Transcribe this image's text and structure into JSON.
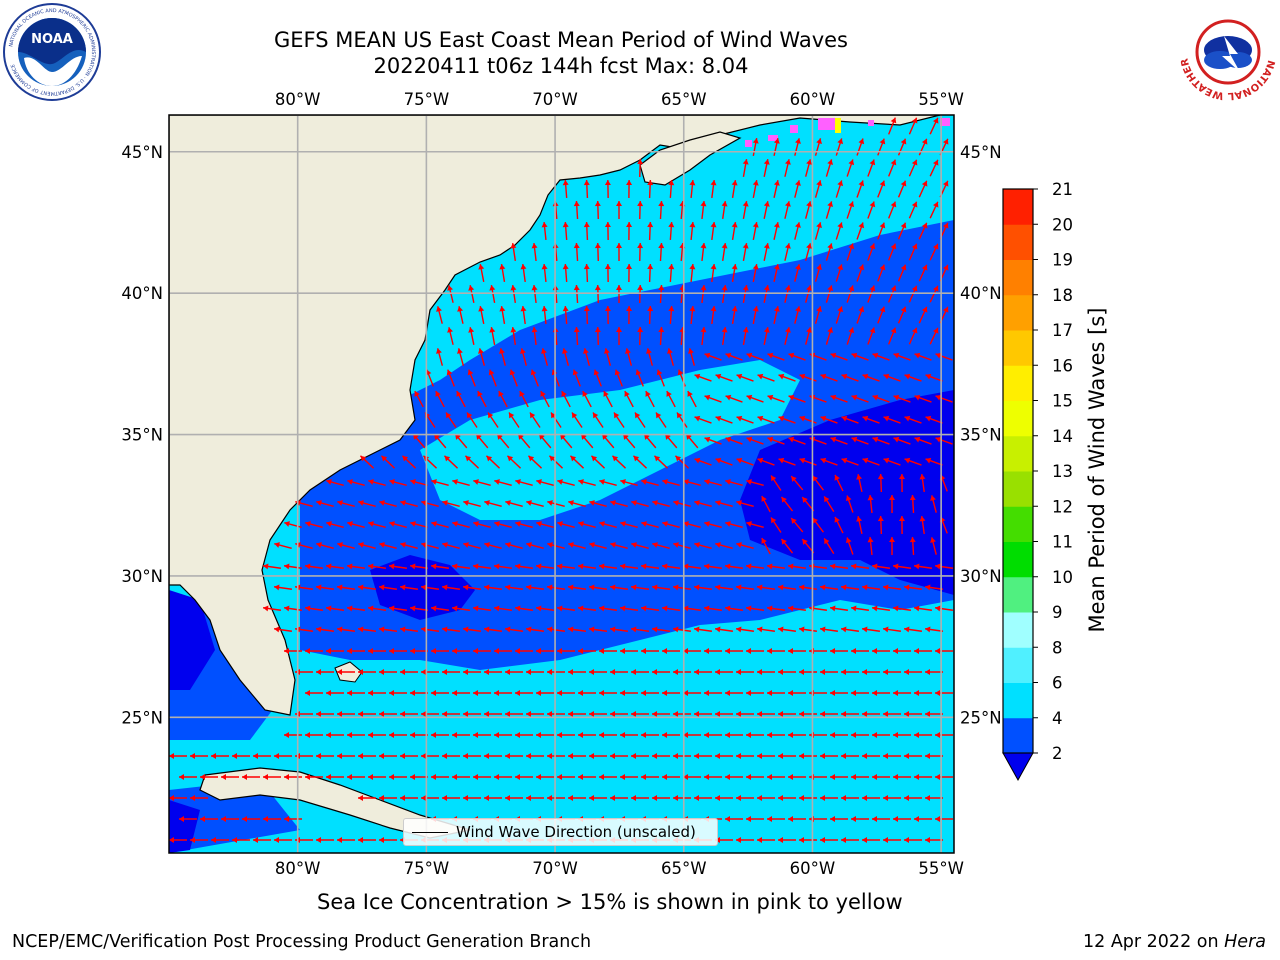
{
  "header": {
    "title_line1": "GEFS MEAN US East Coast Mean Period of Wind Waves",
    "title_line2": "20220411 t06z 144h fcst   Max: 8.04"
  },
  "logos": {
    "left": {
      "name": "noaa-logo",
      "text": "NOAA",
      "ring_text": "NATIONAL OCEANIC AND ATMOSPHERIC ADMINISTRATION · U.S. DEPARTMENT OF COMMERCE"
    },
    "right": {
      "name": "nws-logo",
      "ring_text": "NATIONAL WEATHER SERVICE"
    }
  },
  "map": {
    "lon_ticks": [
      "80°W",
      "75°W",
      "70°W",
      "65°W",
      "60°W",
      "55°W"
    ],
    "lat_ticks": [
      "45°N",
      "40°N",
      "35°N",
      "30°N",
      "25°N"
    ],
    "lon_values": [
      -80,
      -75,
      -70,
      -65,
      -60,
      -55
    ],
    "lat_values": [
      45,
      40,
      35,
      30,
      25
    ],
    "extent": {
      "lon_min": -85,
      "lon_max": -54.5,
      "lat_min": 20.2,
      "lat_max": 46.3
    },
    "colors": {
      "land": "#efeddc",
      "grid": "#b0b0b0",
      "arrow": "#ff0000",
      "coast": "#000000"
    }
  },
  "colorbar": {
    "title": "Mean Period of Wind Waves [s]",
    "tick_labels": [
      "2",
      "4",
      "6",
      "8",
      "9",
      "10",
      "11",
      "12",
      "13",
      "14",
      "15",
      "16",
      "17",
      "18",
      "19",
      "20",
      "21"
    ],
    "colors": [
      "#0050ff",
      "#00e0ff",
      "#50f0ff",
      "#a0ffff",
      "#50f080",
      "#00dd00",
      "#44dd00",
      "#99e000",
      "#c8f000",
      "#eeff00",
      "#ffee00",
      "#ffc800",
      "#ffa000",
      "#ff8000",
      "#ff5000",
      "#ff2000",
      "#ff0000"
    ],
    "extend_color": "#0000ee"
  },
  "legend": {
    "label": "Wind Wave Direction (unscaled)"
  },
  "notes": {
    "sea_ice": "Sea Ice Concentration > 15% is shown in pink to yellow"
  },
  "footer": {
    "left": "NCEP/EMC/Verification Post Processing Product Generation Branch",
    "date": "12 Apr 2022 on ",
    "machine": "Hera"
  }
}
